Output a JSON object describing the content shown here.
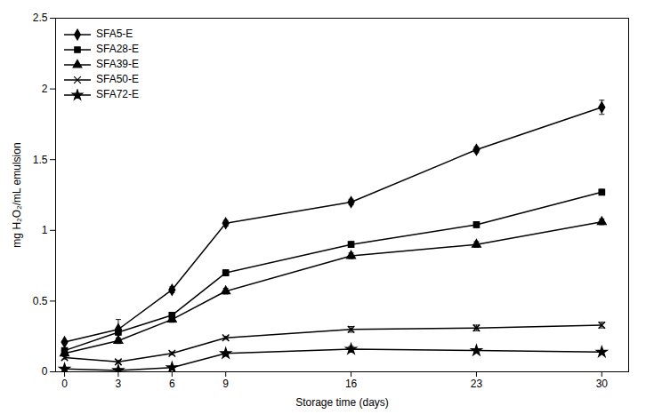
{
  "chart_data": {
    "type": "line",
    "xlabel": "Storage time (days)",
    "ylabel": "mg H₂O₂/mL emulsion",
    "x": [
      0,
      3,
      6,
      9,
      16,
      23,
      30
    ],
    "series": [
      {
        "name": "SFA5-E",
        "color": "#000000",
        "marker": "diamond",
        "values": [
          0.21,
          0.3,
          0.58,
          1.05,
          1.2,
          1.57,
          1.87
        ],
        "yerr": [
          0.01,
          0.07,
          0.02,
          0.02,
          0.02,
          0.02,
          0.05
        ]
      },
      {
        "name": "SFA28-E",
        "color": "#000000",
        "marker": "square",
        "values": [
          0.15,
          0.28,
          0.4,
          0.7,
          0.9,
          1.04,
          1.27
        ],
        "yerr": [
          0.01,
          0.02,
          0.02,
          0.02,
          0.02,
          0.02,
          0.02
        ]
      },
      {
        "name": "SFA39-E",
        "color": "#000000",
        "marker": "triangle",
        "values": [
          0.13,
          0.22,
          0.37,
          0.57,
          0.82,
          0.9,
          1.06
        ],
        "yerr": [
          0.01,
          0.02,
          0.02,
          0.02,
          0.02,
          0.02,
          0.02
        ]
      },
      {
        "name": "SFA50-E",
        "color": "#000000",
        "marker": "times",
        "values": [
          0.1,
          0.07,
          0.13,
          0.24,
          0.3,
          0.31,
          0.33
        ],
        "yerr": [
          0.01,
          0.01,
          0.01,
          0.01,
          0.02,
          0.02,
          0.02
        ]
      },
      {
        "name": "SFA72-E",
        "color": "#000000",
        "marker": "star",
        "values": [
          0.02,
          0.01,
          0.03,
          0.13,
          0.16,
          0.15,
          0.14
        ],
        "yerr": [
          0.01,
          0.01,
          0.01,
          0.01,
          0.02,
          0.01,
          0.01
        ]
      }
    ],
    "xlim": [
      -0.5,
      31.5
    ],
    "xticks": [
      0,
      3,
      6,
      9,
      16,
      23,
      30
    ],
    "ylim": [
      0,
      2.5
    ],
    "yticks": [
      0,
      0.5,
      1.0,
      1.5,
      2.0,
      2.5
    ],
    "grid": false,
    "legend": "upper left"
  }
}
